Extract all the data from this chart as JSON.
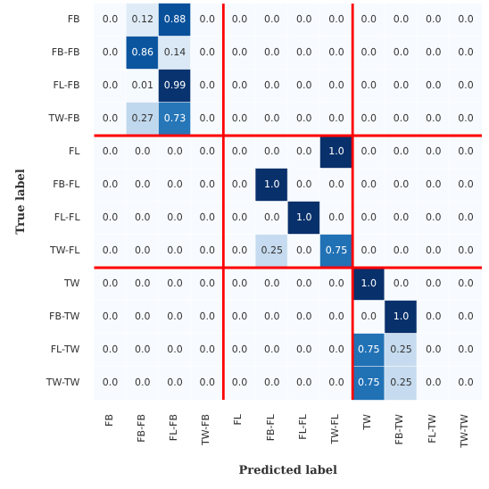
{
  "chart_data": {
    "type": "heatmap",
    "xlabel": "Predicted label",
    "ylabel": "True label",
    "categories": [
      "FB",
      "FB-FB",
      "FL-FB",
      "TW-FB",
      "FL",
      "FB-FL",
      "FL-FL",
      "TW-FL",
      "TW",
      "FB-TW",
      "FL-TW",
      "TW-TW"
    ],
    "y_categories": [
      "FB",
      "FB-FB",
      "FL-FB",
      "TW-FB",
      "FL",
      "FB-FL",
      "FL-FL",
      "TW-FL",
      "TW",
      "FB-TW",
      "FL-TW",
      "TW-TW"
    ],
    "cells": [
      [
        0,
        0.12,
        0.88,
        0,
        0,
        0,
        0,
        0,
        0,
        0,
        0,
        0
      ],
      [
        0,
        0.86,
        0.14,
        0,
        0,
        0,
        0,
        0,
        0,
        0,
        0,
        0
      ],
      [
        0,
        0.01,
        0.99,
        0,
        0,
        0,
        0,
        0,
        0,
        0,
        0,
        0
      ],
      [
        0,
        0.27,
        0.73,
        0,
        0,
        0,
        0,
        0,
        0,
        0,
        0,
        0
      ],
      [
        0,
        0,
        0,
        0,
        0,
        0,
        0,
        1,
        0,
        0,
        0,
        0
      ],
      [
        0,
        0,
        0,
        0,
        0,
        1,
        0,
        0,
        0,
        0,
        0,
        0
      ],
      [
        0,
        0,
        0,
        0,
        0,
        0,
        1,
        0,
        0,
        0,
        0,
        0
      ],
      [
        0,
        0,
        0,
        0,
        0,
        0.25,
        0,
        0.75,
        0,
        0,
        0,
        0
      ],
      [
        0,
        0,
        0,
        0,
        0,
        0,
        0,
        0,
        1,
        0,
        0,
        0
      ],
      [
        0,
        0,
        0,
        0,
        0,
        0,
        0,
        0,
        0,
        1,
        0,
        0
      ],
      [
        0,
        0,
        0,
        0,
        0,
        0,
        0,
        0,
        0.75,
        0.25,
        0,
        0
      ],
      [
        0,
        0,
        0,
        0,
        0,
        0,
        0,
        0,
        0.75,
        0.25,
        0,
        0
      ]
    ],
    "cell_labels": [
      [
        "0.0",
        "0.12",
        "0.88",
        "0.0",
        "0.0",
        "0.0",
        "0.0",
        "0.0",
        "0.0",
        "0.0",
        "0.0",
        "0.0"
      ],
      [
        "0.0",
        "0.86",
        "0.14",
        "0.0",
        "0.0",
        "0.0",
        "0.0",
        "0.0",
        "0.0",
        "0.0",
        "0.0",
        "0.0"
      ],
      [
        "0.0",
        "0.01",
        "0.99",
        "0.0",
        "0.0",
        "0.0",
        "0.0",
        "0.0",
        "0.0",
        "0.0",
        "0.0",
        "0.0"
      ],
      [
        "0.0",
        "0.27",
        "0.73",
        "0.0",
        "0.0",
        "0.0",
        "0.0",
        "0.0",
        "0.0",
        "0.0",
        "0.0",
        "0.0"
      ],
      [
        "0.0",
        "0.0",
        "0.0",
        "0.0",
        "0.0",
        "0.0",
        "0.0",
        "1.0",
        "0.0",
        "0.0",
        "0.0",
        "0.0"
      ],
      [
        "0.0",
        "0.0",
        "0.0",
        "0.0",
        "0.0",
        "1.0",
        "0.0",
        "0.0",
        "0.0",
        "0.0",
        "0.0",
        "0.0"
      ],
      [
        "0.0",
        "0.0",
        "0.0",
        "0.0",
        "0.0",
        "0.0",
        "1.0",
        "0.0",
        "0.0",
        "0.0",
        "0.0",
        "0.0"
      ],
      [
        "0.0",
        "0.0",
        "0.0",
        "0.0",
        "0.0",
        "0.25",
        "0.0",
        "0.75",
        "0.0",
        "0.0",
        "0.0",
        "0.0"
      ],
      [
        "0.0",
        "0.0",
        "0.0",
        "0.0",
        "0.0",
        "0.0",
        "0.0",
        "0.0",
        "1.0",
        "0.0",
        "0.0",
        "0.0"
      ],
      [
        "0.0",
        "0.0",
        "0.0",
        "0.0",
        "0.0",
        "0.0",
        "0.0",
        "0.0",
        "0.0",
        "1.0",
        "0.0",
        "0.0"
      ],
      [
        "0.0",
        "0.0",
        "0.0",
        "0.0",
        "0.0",
        "0.0",
        "0.0",
        "0.0",
        "0.75",
        "0.25",
        "0.0",
        "0.0"
      ],
      [
        "0.0",
        "0.0",
        "0.0",
        "0.0",
        "0.0",
        "0.0",
        "0.0",
        "0.0",
        "0.75",
        "0.25",
        "0.0",
        "0.0"
      ]
    ]
  }
}
